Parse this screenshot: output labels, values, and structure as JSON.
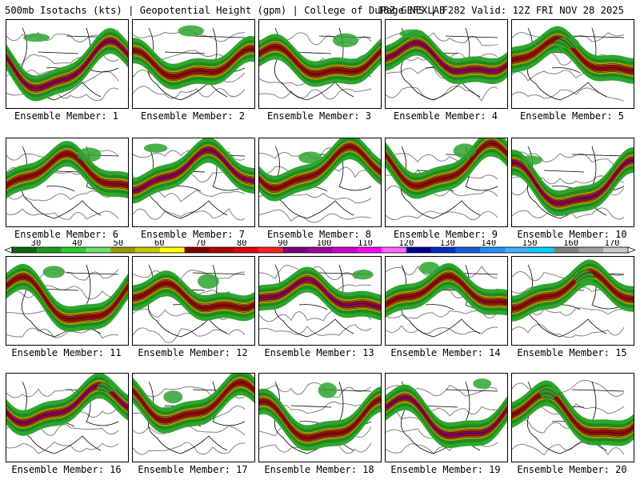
{
  "header": {
    "left": "500mb Isotachs (kts) | Geopotential Height (gpm) | College of DuPage NEXLAB",
    "right": "18Z GEFS | F282 Valid: 12Z FRI NOV 28 2025"
  },
  "members": [
    "Ensemble Member: 1",
    "Ensemble Member: 2",
    "Ensemble Member: 3",
    "Ensemble Member: 4",
    "Ensemble Member: 5",
    "Ensemble Member: 6",
    "Ensemble Member: 7",
    "Ensemble Member: 8",
    "Ensemble Member: 9",
    "Ensemble Member: 10",
    "Ensemble Member: 11",
    "Ensemble Member: 12",
    "Ensemble Member: 13",
    "Ensemble Member: 14",
    "Ensemble Member: 15",
    "Ensemble Member: 16",
    "Ensemble Member: 17",
    "Ensemble Member: 18",
    "Ensemble Member: 19",
    "Ensemble Member: 20"
  ],
  "colorbar": {
    "labels": [
      "30",
      "40",
      "50",
      "60",
      "70",
      "80",
      "90",
      "100",
      "110",
      "120",
      "130",
      "140",
      "150",
      "160",
      "170"
    ],
    "colors": [
      "#0a6b0a",
      "#1e9a1e",
      "#2ecc2e",
      "#6de06d",
      "#9a9a00",
      "#c8c800",
      "#ffff00",
      "#800000",
      "#b00000",
      "#e00000",
      "#ff2020",
      "#7a007a",
      "#a000a0",
      "#cc00cc",
      "#ff00ff",
      "#ff66ff",
      "#000090",
      "#0030c0",
      "#1060e0",
      "#2090ff",
      "#40b0ff",
      "#00d0ff",
      "#808080",
      "#a0a0a0",
      "#c8c8c8"
    ]
  }
}
